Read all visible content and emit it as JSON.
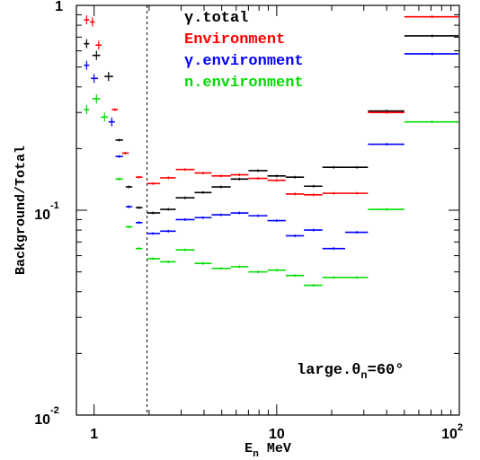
{
  "chart_data": {
    "type": "scatter",
    "title": "",
    "xlabel": "E",
    "xlabel_sub": "n",
    "xlabel_unit": "MeV",
    "ylabel": "Background/Total",
    "xscale": "log",
    "yscale": "log",
    "xlim": [
      0.8,
      100
    ],
    "ylim": [
      0.01,
      1
    ],
    "grid": false,
    "legend_position": "top-center",
    "x_ticks": [
      {
        "value": 1,
        "base": "1",
        "exp": ""
      },
      {
        "value": 10,
        "base": "10",
        "exp": ""
      },
      {
        "value": 100,
        "base": "10",
        "exp": "2"
      }
    ],
    "y_ticks": [
      {
        "value": 1,
        "base": "1",
        "exp": ""
      },
      {
        "value": 0.1,
        "base": "10",
        "exp": "-1"
      },
      {
        "value": 0.01,
        "base": "10",
        "exp": "-2"
      }
    ],
    "threshold_line_x": 1.95,
    "annotation": {
      "prefix": "large.θ",
      "sub": "n",
      "suffix": "=60°"
    },
    "series": [
      {
        "name": "γ.total",
        "color": "#000000",
        "points": [
          {
            "x": 0.91,
            "y": 0.65,
            "xlo": 0.88,
            "xhi": 0.94
          },
          {
            "x": 1.03,
            "y": 0.57,
            "xlo": 0.98,
            "xhi": 1.08
          },
          {
            "x": 1.2,
            "y": 0.45,
            "xlo": 1.14,
            "xhi": 1.27
          },
          {
            "x": 1.37,
            "y": 0.22,
            "xlo": 1.31,
            "xhi": 1.44
          },
          {
            "x": 1.55,
            "y": 0.13,
            "xlo": 1.49,
            "xhi": 1.62
          },
          {
            "x": 1.76,
            "y": 0.103,
            "xlo": 1.69,
            "xhi": 1.84
          },
          {
            "x": 2.1,
            "y": 0.097,
            "xlo": 1.95,
            "xhi": 2.3
          },
          {
            "x": 2.55,
            "y": 0.101,
            "xlo": 2.3,
            "xhi": 2.8
          },
          {
            "x": 3.15,
            "y": 0.115,
            "xlo": 2.8,
            "xhi": 3.55
          },
          {
            "x": 3.95,
            "y": 0.122,
            "xlo": 3.55,
            "xhi": 4.4
          },
          {
            "x": 4.95,
            "y": 0.13,
            "xlo": 4.4,
            "xhi": 5.6
          },
          {
            "x": 6.25,
            "y": 0.142,
            "xlo": 5.6,
            "xhi": 7.0
          },
          {
            "x": 7.9,
            "y": 0.156,
            "xlo": 7.0,
            "xhi": 8.9
          },
          {
            "x": 10.0,
            "y": 0.147,
            "xlo": 8.9,
            "xhi": 11.2
          },
          {
            "x": 12.6,
            "y": 0.145,
            "xlo": 11.2,
            "xhi": 14.1
          },
          {
            "x": 15.9,
            "y": 0.131,
            "xlo": 14.1,
            "xhi": 17.8
          },
          {
            "x": 20.5,
            "y": 0.162,
            "xlo": 17.8,
            "xhi": 23.7
          },
          {
            "x": 27.5,
            "y": 0.162,
            "xlo": 23.7,
            "xhi": 31.6
          },
          {
            "x": 40.0,
            "y": 0.305,
            "xlo": 31.6,
            "xhi": 50.0
          },
          {
            "x": 71.0,
            "y": 0.71,
            "xlo": 50.0,
            "xhi": 100.0
          }
        ]
      },
      {
        "name": "Environment",
        "color": "#ff0000",
        "points": [
          {
            "x": 0.91,
            "y": 0.85,
            "xlo": 0.88,
            "xhi": 0.94
          },
          {
            "x": 0.98,
            "y": 0.83,
            "xlo": 0.95,
            "xhi": 1.01
          },
          {
            "x": 1.06,
            "y": 0.64,
            "xlo": 1.02,
            "xhi": 1.1
          },
          {
            "x": 1.3,
            "y": 0.31,
            "xlo": 1.25,
            "xhi": 1.35
          },
          {
            "x": 1.48,
            "y": 0.19,
            "xlo": 1.42,
            "xhi": 1.55
          },
          {
            "x": 1.76,
            "y": 0.145,
            "xlo": 1.69,
            "xhi": 1.84
          },
          {
            "x": 2.1,
            "y": 0.135,
            "xlo": 1.95,
            "xhi": 2.3
          },
          {
            "x": 2.55,
            "y": 0.144,
            "xlo": 2.3,
            "xhi": 2.8
          },
          {
            "x": 3.15,
            "y": 0.158,
            "xlo": 2.8,
            "xhi": 3.55
          },
          {
            "x": 3.95,
            "y": 0.152,
            "xlo": 3.55,
            "xhi": 4.4
          },
          {
            "x": 4.95,
            "y": 0.147,
            "xlo": 4.4,
            "xhi": 5.6
          },
          {
            "x": 6.25,
            "y": 0.149,
            "xlo": 5.6,
            "xhi": 7.0
          },
          {
            "x": 7.9,
            "y": 0.143,
            "xlo": 7.0,
            "xhi": 8.9
          },
          {
            "x": 10.0,
            "y": 0.14,
            "xlo": 8.9,
            "xhi": 11.2
          },
          {
            "x": 12.6,
            "y": 0.12,
            "xlo": 11.2,
            "xhi": 14.1
          },
          {
            "x": 15.9,
            "y": 0.119,
            "xlo": 14.1,
            "xhi": 17.8
          },
          {
            "x": 20.5,
            "y": 0.121,
            "xlo": 17.8,
            "xhi": 23.7
          },
          {
            "x": 27.5,
            "y": 0.121,
            "xlo": 23.7,
            "xhi": 31.6
          },
          {
            "x": 40.0,
            "y": 0.3,
            "xlo": 31.6,
            "xhi": 50.0
          },
          {
            "x": 71.0,
            "y": 0.88,
            "xlo": 50.0,
            "xhi": 100.0
          }
        ]
      },
      {
        "name": "γ.environment",
        "color": "#0000ff",
        "points": [
          {
            "x": 0.91,
            "y": 0.51,
            "xlo": 0.88,
            "xhi": 0.94
          },
          {
            "x": 1.0,
            "y": 0.44,
            "xlo": 0.96,
            "xhi": 1.05
          },
          {
            "x": 1.25,
            "y": 0.27,
            "xlo": 1.2,
            "xhi": 1.3
          },
          {
            "x": 1.37,
            "y": 0.183,
            "xlo": 1.31,
            "xhi": 1.44
          },
          {
            "x": 1.55,
            "y": 0.104,
            "xlo": 1.49,
            "xhi": 1.62
          },
          {
            "x": 1.76,
            "y": 0.087,
            "xlo": 1.69,
            "xhi": 1.84
          },
          {
            "x": 2.1,
            "y": 0.077,
            "xlo": 1.95,
            "xhi": 2.3
          },
          {
            "x": 2.55,
            "y": 0.079,
            "xlo": 2.3,
            "xhi": 2.8
          },
          {
            "x": 3.15,
            "y": 0.09,
            "xlo": 2.8,
            "xhi": 3.55
          },
          {
            "x": 3.95,
            "y": 0.092,
            "xlo": 3.55,
            "xhi": 4.4
          },
          {
            "x": 4.95,
            "y": 0.095,
            "xlo": 4.4,
            "xhi": 5.6
          },
          {
            "x": 6.25,
            "y": 0.097,
            "xlo": 5.6,
            "xhi": 7.0
          },
          {
            "x": 7.9,
            "y": 0.094,
            "xlo": 7.0,
            "xhi": 8.9
          },
          {
            "x": 10.0,
            "y": 0.089,
            "xlo": 8.9,
            "xhi": 11.2
          },
          {
            "x": 12.6,
            "y": 0.075,
            "xlo": 11.2,
            "xhi": 14.1
          },
          {
            "x": 15.9,
            "y": 0.08,
            "xlo": 14.1,
            "xhi": 17.8
          },
          {
            "x": 20.5,
            "y": 0.065,
            "xlo": 17.8,
            "xhi": 23.7
          },
          {
            "x": 27.5,
            "y": 0.078,
            "xlo": 23.7,
            "xhi": 31.6
          },
          {
            "x": 40.0,
            "y": 0.21,
            "xlo": 31.6,
            "xhi": 50.0
          },
          {
            "x": 71.0,
            "y": 0.58,
            "xlo": 50.0,
            "xhi": 100.0
          }
        ]
      },
      {
        "name": "n.environment",
        "color": "#00dd00",
        "points": [
          {
            "x": 0.91,
            "y": 0.31,
            "xlo": 0.88,
            "xhi": 0.94
          },
          {
            "x": 1.03,
            "y": 0.35,
            "xlo": 0.98,
            "xhi": 1.08
          },
          {
            "x": 1.14,
            "y": 0.285,
            "xlo": 1.09,
            "xhi": 1.19
          },
          {
            "x": 1.37,
            "y": 0.142,
            "xlo": 1.31,
            "xhi": 1.44
          },
          {
            "x": 1.55,
            "y": 0.083,
            "xlo": 1.49,
            "xhi": 1.62
          },
          {
            "x": 1.76,
            "y": 0.065,
            "xlo": 1.69,
            "xhi": 1.84
          },
          {
            "x": 2.1,
            "y": 0.058,
            "xlo": 1.95,
            "xhi": 2.3
          },
          {
            "x": 2.55,
            "y": 0.056,
            "xlo": 2.3,
            "xhi": 2.8
          },
          {
            "x": 3.15,
            "y": 0.064,
            "xlo": 2.8,
            "xhi": 3.55
          },
          {
            "x": 3.95,
            "y": 0.055,
            "xlo": 3.55,
            "xhi": 4.4
          },
          {
            "x": 4.95,
            "y": 0.052,
            "xlo": 4.4,
            "xhi": 5.6
          },
          {
            "x": 6.25,
            "y": 0.053,
            "xlo": 5.6,
            "xhi": 7.0
          },
          {
            "x": 7.9,
            "y": 0.05,
            "xlo": 7.0,
            "xhi": 8.9
          },
          {
            "x": 10.0,
            "y": 0.051,
            "xlo": 8.9,
            "xhi": 11.2
          },
          {
            "x": 12.6,
            "y": 0.048,
            "xlo": 11.2,
            "xhi": 14.1
          },
          {
            "x": 15.9,
            "y": 0.043,
            "xlo": 14.1,
            "xhi": 17.8
          },
          {
            "x": 20.5,
            "y": 0.047,
            "xlo": 17.8,
            "xhi": 23.7
          },
          {
            "x": 27.5,
            "y": 0.047,
            "xlo": 23.7,
            "xhi": 31.6
          },
          {
            "x": 40.0,
            "y": 0.101,
            "xlo": 31.6,
            "xhi": 50.0
          },
          {
            "x": 71.0,
            "y": 0.27,
            "xlo": 50.0,
            "xhi": 100.0
          }
        ]
      }
    ]
  }
}
